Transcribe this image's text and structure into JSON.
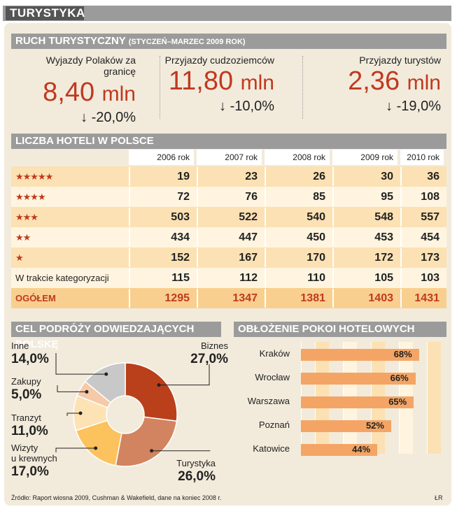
{
  "header": {
    "title": "TURYSTYKA"
  },
  "tourism": {
    "title": "RUCH TURYSTYCZNY",
    "subtitle": "(STYCZEŃ–MARZEC 2009 ROK)",
    "stats": [
      {
        "label": "Wyjazdy Polaków za granicę",
        "value": "8,40",
        "unit": "mln",
        "change": "-20,0%"
      },
      {
        "label": "Przyjazdy cudzoziemców",
        "value": "11,80",
        "unit": "mln",
        "change": "-10,0%"
      },
      {
        "label": "Przyjazdy turystów",
        "value": "2,36",
        "unit": "mln",
        "change": "-19,0%"
      }
    ],
    "arrow": "↓"
  },
  "hotels": {
    "title": "LICZBA HOTELI W POLSCE",
    "columns": [
      "2006 rok",
      "2007 rok",
      "2008 rok",
      "2009 rok",
      "2010 rok"
    ],
    "rows": [
      {
        "label": "★★★★★",
        "stars": true,
        "values": [
          "19",
          "23",
          "26",
          "30",
          "36"
        ]
      },
      {
        "label": "★★★★",
        "stars": true,
        "values": [
          "72",
          "76",
          "85",
          "95",
          "108"
        ]
      },
      {
        "label": "★★★",
        "stars": true,
        "values": [
          "503",
          "522",
          "540",
          "548",
          "557"
        ]
      },
      {
        "label": "★★",
        "stars": true,
        "values": [
          "434",
          "447",
          "450",
          "453",
          "454"
        ]
      },
      {
        "label": "★",
        "stars": true,
        "values": [
          "152",
          "167",
          "170",
          "172",
          "173"
        ]
      },
      {
        "label": "W trakcie kategoryzacji",
        "stars": false,
        "values": [
          "115",
          "112",
          "110",
          "105",
          "103"
        ]
      }
    ],
    "total": {
      "label": "OGÓŁEM",
      "values": [
        "1295",
        "1347",
        "1381",
        "1403",
        "1431"
      ]
    },
    "colors": {
      "row_a": "#fbe1b3",
      "row_b": "#fff4df",
      "total": "#f8cf8e"
    }
  },
  "purpose": {
    "title": "CEL PODRÓŻY ODWIEDZAJĄCYCH POLSKĘ",
    "slices": [
      {
        "name": "Biznes",
        "value": 27.0,
        "display": "27,0%",
        "color": "#b9401b"
      },
      {
        "name": "Turystyka",
        "value": 26.0,
        "display": "26,0%",
        "color": "#d1845f"
      },
      {
        "name": "Wizyty u krewnych",
        "line1": "Wizyty",
        "line2": "u krewnych",
        "value": 17.0,
        "display": "17,0%",
        "color": "#fcc25e"
      },
      {
        "name": "Tranzyt",
        "value": 11.0,
        "display": "11,0%",
        "color": "#fde2b3"
      },
      {
        "name": "Zakupy",
        "value": 5.0,
        "display": "5,0%",
        "color": "#f6c9a8"
      },
      {
        "name": "Inne",
        "value": 14.0,
        "display": "14,0%",
        "color": "#c8c8c8"
      }
    ]
  },
  "occupancy": {
    "title": "OBŁOŻENIE POKOI HOTELOWYCH",
    "bar_color": "#f4a565",
    "items": [
      {
        "city": "Kraków",
        "value": 68,
        "display": "68%"
      },
      {
        "city": "Wrocław",
        "value": 66,
        "display": "66%"
      },
      {
        "city": "Warszawa",
        "value": 65,
        "display": "65%"
      },
      {
        "city": "Poznań",
        "value": 52,
        "display": "52%"
      },
      {
        "city": "Katowice",
        "value": 44,
        "display": "44%"
      }
    ]
  },
  "footer": {
    "source": "Źródło: Raport wiosna 2009, Cushman & Wakefield, dane na koniec 2008 r.",
    "author": "ŁR"
  },
  "chart_data": [
    {
      "type": "table",
      "title": "LICZBA HOTELI W POLSCE",
      "categories": [
        "2006 rok",
        "2007 rok",
        "2008 rok",
        "2009 rok",
        "2010 rok"
      ],
      "series": [
        {
          "name": "★★★★★",
          "values": [
            19,
            23,
            26,
            30,
            36
          ]
        },
        {
          "name": "★★★★",
          "values": [
            72,
            76,
            85,
            95,
            108
          ]
        },
        {
          "name": "★★★",
          "values": [
            503,
            522,
            540,
            548,
            557
          ]
        },
        {
          "name": "★★",
          "values": [
            434,
            447,
            450,
            453,
            454
          ]
        },
        {
          "name": "★",
          "values": [
            152,
            167,
            170,
            172,
            173
          ]
        },
        {
          "name": "W trakcie kategoryzacji",
          "values": [
            115,
            112,
            110,
            105,
            103
          ]
        },
        {
          "name": "OGÓŁEM",
          "values": [
            1295,
            1347,
            1381,
            1403,
            1431
          ]
        }
      ]
    },
    {
      "type": "pie",
      "title": "CEL PODRÓŻY ODWIEDZAJĄCYCH POLSKĘ",
      "categories": [
        "Biznes",
        "Turystyka",
        "Wizyty u krewnych",
        "Tranzyt",
        "Zakupy",
        "Inne"
      ],
      "values": [
        27.0,
        26.0,
        17.0,
        11.0,
        5.0,
        14.0
      ]
    },
    {
      "type": "bar",
      "title": "OBŁOŻENIE POKOI HOTELOWYCH",
      "categories": [
        "Kraków",
        "Wrocław",
        "Warszawa",
        "Poznań",
        "Katowice"
      ],
      "values": [
        68,
        66,
        65,
        52,
        44
      ]
    }
  ]
}
